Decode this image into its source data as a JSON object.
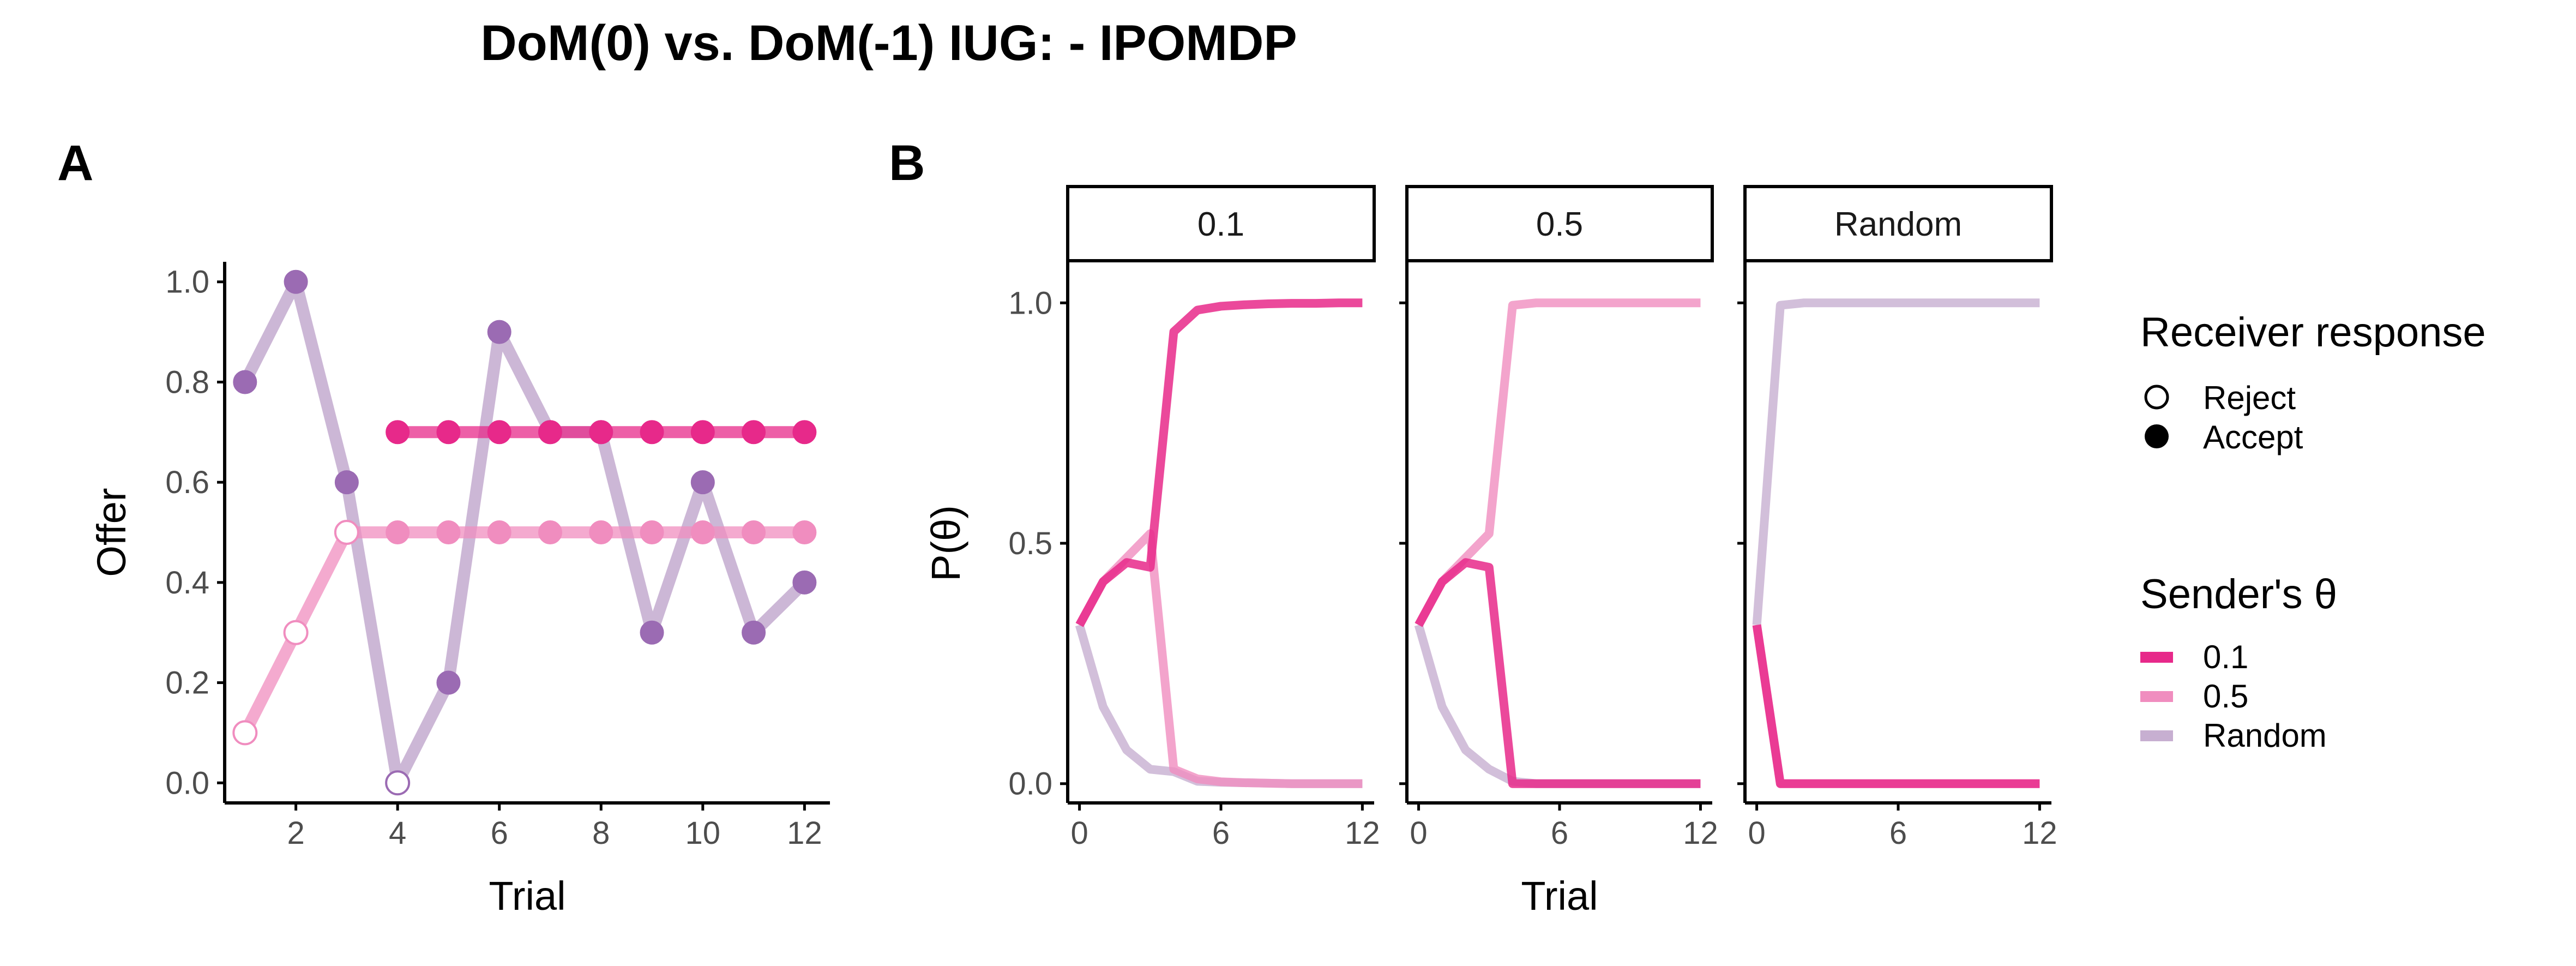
{
  "title": "DoM(0) vs. DoM(-1) IUG: - IPOMDP",
  "colors": {
    "theta_0_1": "#e7298a",
    "theta_0_5": "#f08dbf",
    "random": "#c7afd1",
    "random_point": "#9b6bb3",
    "axis": "#000000",
    "tick_text": "#4d4d4d"
  },
  "chart_data": [
    {
      "panel_label": "A",
      "type": "line",
      "xlabel": "Trial",
      "ylabel": "Offer",
      "xlim": [
        0.6,
        12.5
      ],
      "ylim": [
        -0.04,
        1.04
      ],
      "xticks": [
        "2",
        "4",
        "6",
        "8",
        "10",
        "12"
      ],
      "yticks": [
        "0.0",
        "0.2",
        "0.4",
        "0.6",
        "0.8",
        "1.0"
      ],
      "series": [
        {
          "name": "Random",
          "color_key": "random",
          "x": [
            1,
            2,
            3,
            4,
            5,
            6,
            7,
            8,
            9,
            10,
            11,
            12
          ],
          "y": [
            0.8,
            1.0,
            0.6,
            0.0,
            0.2,
            0.9,
            0.7,
            0.7,
            0.3,
            0.6,
            0.3,
            0.4
          ],
          "accepted": [
            true,
            true,
            true,
            false,
            true,
            true,
            true,
            true,
            true,
            true,
            true,
            true
          ]
        },
        {
          "name": "0.5",
          "color_key": "theta_0_5",
          "x": [
            1,
            2,
            3,
            4,
            5,
            6,
            7,
            8,
            9,
            10,
            11,
            12
          ],
          "y": [
            0.1,
            0.3,
            0.5,
            0.5,
            0.5,
            0.5,
            0.5,
            0.5,
            0.5,
            0.5,
            0.5,
            0.5
          ],
          "accepted": [
            false,
            false,
            false,
            true,
            true,
            true,
            true,
            true,
            true,
            true,
            true,
            true
          ]
        },
        {
          "name": "0.1",
          "color_key": "theta_0_1",
          "x": [
            4,
            5,
            6,
            7,
            8,
            9,
            10,
            11,
            12
          ],
          "y": [
            0.7,
            0.7,
            0.7,
            0.7,
            0.7,
            0.7,
            0.7,
            0.7,
            0.7
          ],
          "accepted": [
            true,
            true,
            true,
            true,
            true,
            true,
            true,
            true,
            true
          ]
        }
      ]
    },
    {
      "panel_label": "B",
      "type": "line",
      "xlabel": "Trial",
      "ylabel": "P(θ)",
      "xlim": [
        -0.5,
        12.5
      ],
      "ylim": [
        -0.04,
        1.04
      ],
      "xticks": [
        "0",
        "6",
        "12"
      ],
      "yticks": [
        "0.0",
        "0.5",
        "1.0"
      ],
      "facets": [
        {
          "strip": "0.1",
          "series": [
            {
              "name": "0.1",
              "color_key": "theta_0_1",
              "x": [
                0,
                1,
                2,
                3,
                4,
                5,
                6,
                7,
                8,
                9,
                10,
                11,
                12
              ],
              "y": [
                0.33,
                0.42,
                0.46,
                0.45,
                0.94,
                0.985,
                0.993,
                0.996,
                0.998,
                0.999,
                0.999,
                1.0,
                1.0
              ]
            },
            {
              "name": "0.5",
              "color_key": "theta_0_5",
              "x": [
                0,
                1,
                2,
                3,
                4,
                5,
                6,
                7,
                8,
                9,
                10,
                11,
                12
              ],
              "y": [
                0.33,
                0.42,
                0.47,
                0.52,
                0.03,
                0.01,
                0.004,
                0.002,
                0.001,
                0.0,
                0.0,
                0.0,
                0.0
              ]
            },
            {
              "name": "Random",
              "color_key": "random",
              "x": [
                0,
                1,
                2,
                3,
                4,
                5,
                6,
                7,
                8,
                9,
                10,
                11,
                12
              ],
              "y": [
                0.33,
                0.16,
                0.07,
                0.03,
                0.025,
                0.005,
                0.003,
                0.002,
                0.001,
                0.0,
                0.0,
                0.0,
                0.0
              ]
            }
          ]
        },
        {
          "strip": "0.5",
          "series": [
            {
              "name": "0.1",
              "color_key": "theta_0_1",
              "x": [
                0,
                1,
                2,
                3,
                4,
                5,
                6,
                7,
                8,
                9,
                10,
                11,
                12
              ],
              "y": [
                0.33,
                0.42,
                0.46,
                0.45,
                0.0,
                0.0,
                0.0,
                0.0,
                0.0,
                0.0,
                0.0,
                0.0,
                0.0
              ]
            },
            {
              "name": "0.5",
              "color_key": "theta_0_5",
              "x": [
                0,
                1,
                2,
                3,
                4,
                5,
                6,
                7,
                8,
                9,
                10,
                11,
                12
              ],
              "y": [
                0.33,
                0.42,
                0.47,
                0.52,
                0.995,
                1.0,
                1.0,
                1.0,
                1.0,
                1.0,
                1.0,
                1.0,
                1.0
              ]
            },
            {
              "name": "Random",
              "color_key": "random",
              "x": [
                0,
                1,
                2,
                3,
                4,
                5,
                6,
                7,
                8,
                9,
                10,
                11,
                12
              ],
              "y": [
                0.33,
                0.16,
                0.07,
                0.03,
                0.005,
                0.0,
                0.0,
                0.0,
                0.0,
                0.0,
                0.0,
                0.0,
                0.0
              ]
            }
          ]
        },
        {
          "strip": "Random",
          "series": [
            {
              "name": "0.1",
              "color_key": "theta_0_1",
              "x": [
                0,
                1,
                2,
                3,
                4,
                5,
                6,
                7,
                8,
                9,
                10,
                11,
                12
              ],
              "y": [
                0.33,
                0.0,
                0.0,
                0.0,
                0.0,
                0.0,
                0.0,
                0.0,
                0.0,
                0.0,
                0.0,
                0.0,
                0.0
              ]
            },
            {
              "name": "0.5",
              "color_key": "theta_0_5",
              "x": [
                0,
                1,
                2,
                3,
                4,
                5,
                6,
                7,
                8,
                9,
                10,
                11,
                12
              ],
              "y": [
                0.33,
                0.0,
                0.0,
                0.0,
                0.0,
                0.0,
                0.0,
                0.0,
                0.0,
                0.0,
                0.0,
                0.0,
                0.0
              ]
            },
            {
              "name": "Random",
              "color_key": "random",
              "x": [
                0,
                1,
                2,
                3,
                4,
                5,
                6,
                7,
                8,
                9,
                10,
                11,
                12
              ],
              "y": [
                0.33,
                0.995,
                1.0,
                1.0,
                1.0,
                1.0,
                1.0,
                1.0,
                1.0,
                1.0,
                1.0,
                1.0,
                1.0
              ]
            }
          ]
        }
      ]
    }
  ],
  "legend": {
    "response_title": "Receiver response",
    "response_items": [
      {
        "label": "Reject",
        "shape": "open-circle"
      },
      {
        "label": "Accept",
        "shape": "filled-circle"
      }
    ],
    "theta_title": "Sender's θ",
    "theta_items": [
      {
        "label": "0.1",
        "color_key": "theta_0_1"
      },
      {
        "label": "0.5",
        "color_key": "theta_0_5"
      },
      {
        "label": "Random",
        "color_key": "random"
      }
    ]
  }
}
